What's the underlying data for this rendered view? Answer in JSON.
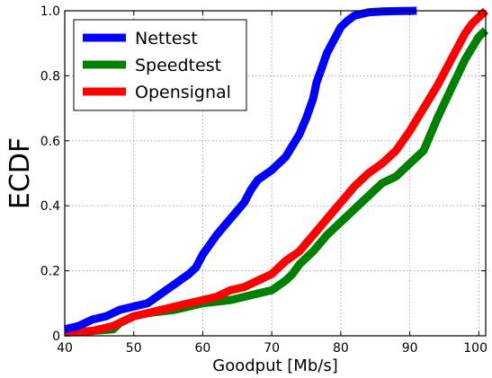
{
  "chart_data": {
    "type": "line",
    "title": "",
    "xlabel": "Goodput [Mb/s]",
    "ylabel": "ECDF",
    "xlim": [
      40,
      101
    ],
    "ylim": [
      0,
      1.0
    ],
    "x_ticks": [
      40,
      50,
      60,
      70,
      80,
      90,
      100
    ],
    "y_ticks": [
      0.0,
      0.2,
      0.4,
      0.6,
      0.8,
      1.0
    ],
    "x_tick_labels": [
      "40",
      "50",
      "60",
      "70",
      "80",
      "90",
      "100"
    ],
    "y_tick_labels": [
      "0",
      "0.2",
      "0.4",
      "0.6",
      "0.8",
      "1.0"
    ],
    "grid": true,
    "legend_position": "top-left",
    "series": [
      {
        "name": "Nettest",
        "color": "#0000ff",
        "points": [
          [
            40,
            0.02
          ],
          [
            42,
            0.03
          ],
          [
            44,
            0.05
          ],
          [
            46,
            0.06
          ],
          [
            48,
            0.08
          ],
          [
            50,
            0.09
          ],
          [
            52,
            0.1
          ],
          [
            54,
            0.13
          ],
          [
            56,
            0.16
          ],
          [
            58,
            0.19
          ],
          [
            59,
            0.21
          ],
          [
            60,
            0.25
          ],
          [
            62,
            0.31
          ],
          [
            64,
            0.36
          ],
          [
            66,
            0.41
          ],
          [
            67,
            0.45
          ],
          [
            68,
            0.48
          ],
          [
            70,
            0.51
          ],
          [
            72,
            0.55
          ],
          [
            74,
            0.62
          ],
          [
            75,
            0.67
          ],
          [
            76,
            0.73
          ],
          [
            76.5,
            0.78
          ],
          [
            77,
            0.81
          ],
          [
            78,
            0.87
          ],
          [
            79,
            0.91
          ],
          [
            80,
            0.95
          ],
          [
            81,
            0.97
          ],
          [
            82,
            0.985
          ],
          [
            84,
            0.995
          ],
          [
            86,
            0.998
          ],
          [
            88,
            0.999
          ],
          [
            91,
            1.0
          ]
        ]
      },
      {
        "name": "Speedtest",
        "color": "#008000",
        "points": [
          [
            40,
            0.01
          ],
          [
            44,
            0.015
          ],
          [
            47,
            0.02
          ],
          [
            48,
            0.04
          ],
          [
            50,
            0.06
          ],
          [
            52,
            0.07
          ],
          [
            56,
            0.08
          ],
          [
            58,
            0.09
          ],
          [
            60,
            0.1
          ],
          [
            64,
            0.11
          ],
          [
            66,
            0.12
          ],
          [
            68,
            0.13
          ],
          [
            70,
            0.14
          ],
          [
            72,
            0.17
          ],
          [
            73,
            0.19
          ],
          [
            74,
            0.22
          ],
          [
            76,
            0.26
          ],
          [
            78,
            0.31
          ],
          [
            80,
            0.35
          ],
          [
            82,
            0.39
          ],
          [
            84,
            0.43
          ],
          [
            86,
            0.47
          ],
          [
            88,
            0.49
          ],
          [
            90,
            0.53
          ],
          [
            92,
            0.57
          ],
          [
            94,
            0.67
          ],
          [
            96,
            0.76
          ],
          [
            98,
            0.85
          ],
          [
            100,
            0.92
          ],
          [
            101,
            0.94
          ]
        ]
      },
      {
        "name": "Opensignal",
        "color": "#ff0000",
        "points": [
          [
            40,
            0.01
          ],
          [
            44,
            0.015
          ],
          [
            47,
            0.03
          ],
          [
            49,
            0.05
          ],
          [
            50,
            0.06
          ],
          [
            52,
            0.07
          ],
          [
            56,
            0.09
          ],
          [
            58,
            0.1
          ],
          [
            60,
            0.11
          ],
          [
            62,
            0.12
          ],
          [
            64,
            0.14
          ],
          [
            66,
            0.15
          ],
          [
            68,
            0.17
          ],
          [
            70,
            0.19
          ],
          [
            72,
            0.23
          ],
          [
            74,
            0.26
          ],
          [
            76,
            0.31
          ],
          [
            78,
            0.36
          ],
          [
            80,
            0.41
          ],
          [
            82,
            0.46
          ],
          [
            84,
            0.5
          ],
          [
            86,
            0.53
          ],
          [
            88,
            0.57
          ],
          [
            90,
            0.63
          ],
          [
            92,
            0.7
          ],
          [
            94,
            0.77
          ],
          [
            96,
            0.85
          ],
          [
            98,
            0.93
          ],
          [
            99,
            0.96
          ],
          [
            100,
            0.98
          ],
          [
            101,
            1.0
          ]
        ]
      }
    ]
  }
}
